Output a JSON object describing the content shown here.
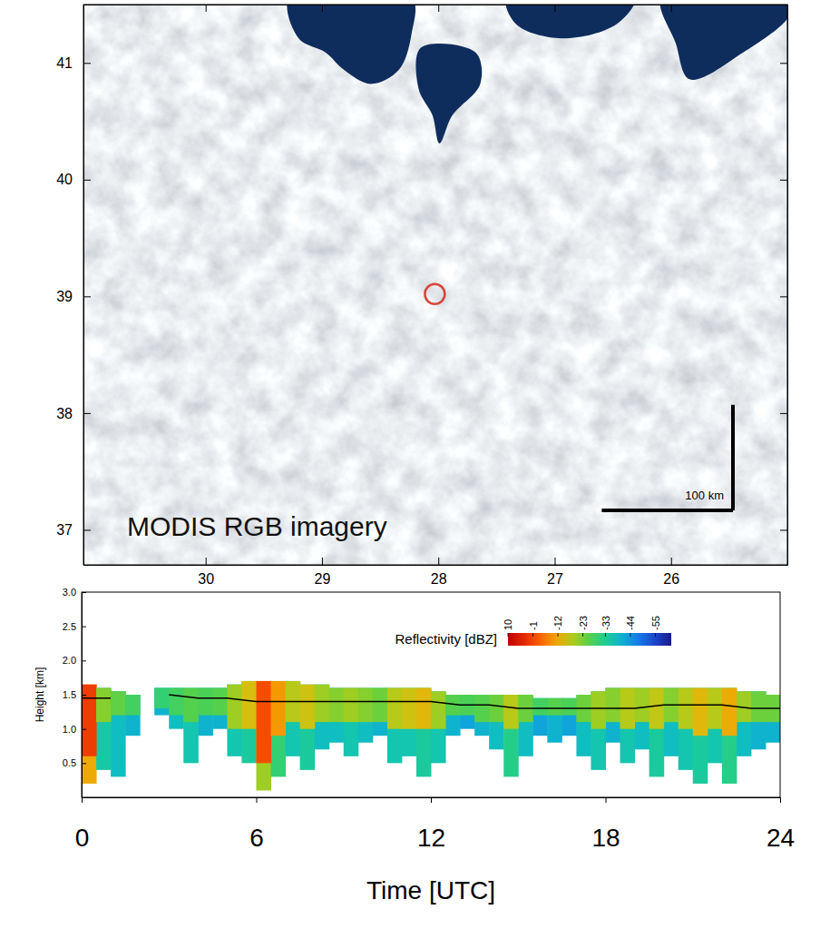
{
  "chart_data": [
    {
      "type": "map",
      "xlim": [
        31.05,
        25.0
      ],
      "ylim": [
        36.7,
        41.5
      ],
      "xticks": [
        30,
        29,
        28,
        27,
        26
      ],
      "yticks": [
        37,
        38,
        39,
        40,
        41
      ],
      "annotation": "MODIS RGB imagery",
      "scale_bar": {
        "label": "100 km",
        "length_km": 100
      },
      "site": {
        "lon": 28.03,
        "lat": 39.02
      },
      "clear_sky": [
        {
          "lon": [
            29.28,
            28.23,
            28.23,
            28.34,
            28.58,
            28.81,
            28.97,
            29.2
          ],
          "lat": [
            41.56,
            41.56,
            41.25,
            40.94,
            40.82,
            40.94,
            41.09,
            41.21
          ]
        },
        {
          "lon": [
            28.15,
            27.68,
            27.64,
            27.88,
            27.99,
            28.05,
            28.17
          ],
          "lat": [
            41.13,
            41.09,
            40.82,
            40.55,
            40.31,
            40.55,
            40.78
          ]
        },
        {
          "lon": [
            27.41,
            26.31,
            26.47,
            26.94,
            27.33
          ],
          "lat": [
            41.56,
            41.56,
            41.33,
            41.21,
            41.33
          ]
        },
        {
          "lon": [
            26.08,
            24.98,
            24.98,
            25.38,
            25.84,
            25.96
          ],
          "lat": [
            41.56,
            41.56,
            41.41,
            41.09,
            40.86,
            41.17
          ]
        }
      ]
    },
    {
      "type": "time_height",
      "x_label": "Time [UTC]",
      "y_label": "Height [km]",
      "xlim": [
        0,
        24
      ],
      "ylim": [
        0,
        3
      ],
      "xticks": [
        0,
        6,
        12,
        18,
        24
      ],
      "yticks": [
        0.5,
        {
          "value": 1,
          "label": "1.0"
        },
        1.5,
        {
          "value": 2,
          "label": "2.0"
        },
        2.5,
        {
          "value": 3,
          "label": "3.0"
        }
      ],
      "x_edges": [
        0,
        0.5,
        1,
        1.5,
        2,
        2.5,
        3,
        3.5,
        4,
        4.5,
        5,
        5.5,
        6,
        6.5,
        7,
        7.5,
        8,
        8.5,
        9,
        9.5,
        10,
        10.5,
        11,
        11.5,
        12,
        12.5,
        13,
        13.5,
        14,
        14.5,
        15,
        15.5,
        16,
        16.5,
        17,
        17.5,
        18,
        18.5,
        19,
        19.5,
        20,
        20.5,
        21,
        21.5,
        22,
        22.5,
        23,
        23.5,
        24
      ],
      "cloud_top": [
        1.65,
        1.6,
        1.55,
        1.5,
        null,
        1.6,
        1.6,
        1.6,
        1.6,
        1.6,
        1.65,
        1.7,
        1.7,
        1.7,
        1.7,
        1.65,
        1.65,
        1.6,
        1.6,
        1.6,
        1.6,
        1.6,
        1.6,
        1.6,
        1.55,
        1.5,
        1.5,
        1.5,
        1.5,
        1.5,
        1.5,
        1.45,
        1.45,
        1.45,
        1.5,
        1.55,
        1.6,
        1.6,
        1.6,
        1.6,
        1.6,
        1.6,
        1.6,
        1.6,
        1.6,
        1.55,
        1.55,
        1.5
      ],
      "echo_base": [
        0.2,
        0.4,
        0.3,
        0.9,
        null,
        1.2,
        1.0,
        0.5,
        0.9,
        1.0,
        0.6,
        0.5,
        0.1,
        0.3,
        0.6,
        0.4,
        0.7,
        0.8,
        0.6,
        0.8,
        0.9,
        0.5,
        0.6,
        0.3,
        0.5,
        0.9,
        1.0,
        0.9,
        0.7,
        0.3,
        0.6,
        0.9,
        0.8,
        0.9,
        0.6,
        0.4,
        0.8,
        0.5,
        0.7,
        0.3,
        0.6,
        0.4,
        0.2,
        0.5,
        0.2,
        0.6,
        0.7,
        0.8
      ],
      "echo_dbz": [
        -12,
        -35,
        -38,
        -40,
        null,
        -40,
        -38,
        -36,
        -40,
        -40,
        -36,
        -34,
        -20,
        -30,
        -36,
        -34,
        -38,
        -38,
        -36,
        -38,
        -40,
        -36,
        -36,
        -34,
        -36,
        -40,
        -42,
        -40,
        -38,
        -32,
        -38,
        -42,
        -40,
        -42,
        -38,
        -36,
        -40,
        -36,
        -38,
        -34,
        -38,
        -36,
        -34,
        -36,
        -32,
        -38,
        -40,
        -40
      ],
      "core_base": [
        0.6,
        1.1,
        1.2,
        1.2,
        null,
        1.3,
        1.2,
        1.1,
        1.2,
        1.2,
        1.0,
        1.0,
        0.5,
        0.9,
        1.1,
        1.0,
        1.1,
        1.1,
        1.1,
        1.1,
        1.1,
        1.0,
        1.0,
        1.0,
        1.0,
        1.2,
        1.2,
        1.1,
        1.1,
        1.0,
        1.1,
        1.2,
        1.2,
        1.2,
        1.1,
        1.0,
        1.1,
        1.0,
        1.1,
        1.0,
        1.1,
        1.0,
        0.9,
        1.0,
        0.9,
        1.1,
        1.1,
        1.1
      ],
      "core_dbz": [
        0,
        -22,
        -25,
        -28,
        null,
        -30,
        -28,
        -26,
        -27,
        -26,
        -20,
        -15,
        -2,
        -10,
        -18,
        -16,
        -20,
        -22,
        -20,
        -22,
        -24,
        -18,
        -16,
        -14,
        -20,
        -26,
        -27,
        -26,
        -24,
        -18,
        -24,
        -28,
        -26,
        -27,
        -24,
        -20,
        -22,
        -18,
        -20,
        -17,
        -22,
        -18,
        -14,
        -18,
        -12,
        -20,
        -24,
        -24
      ],
      "line_x": [
        0,
        1,
        2,
        3,
        4,
        5,
        6,
        7,
        8,
        9,
        10,
        11,
        12,
        13,
        14,
        15,
        16,
        17,
        18,
        19,
        20,
        21,
        22,
        23,
        24
      ],
      "cloud_base": [
        1.45,
        1.45,
        null,
        1.5,
        1.45,
        1.45,
        1.4,
        1.4,
        1.4,
        1.4,
        1.4,
        1.4,
        1.4,
        1.35,
        1.35,
        1.3,
        1.3,
        1.3,
        1.3,
        1.3,
        1.35,
        1.35,
        1.35,
        1.3,
        1.3
      ],
      "colorbar": {
        "title": "Reflectivity [dBZ]",
        "range": [
          10,
          -62
        ],
        "ticks": [
          10,
          -1,
          -12,
          -23,
          -33,
          -44,
          -55
        ]
      }
    }
  ]
}
